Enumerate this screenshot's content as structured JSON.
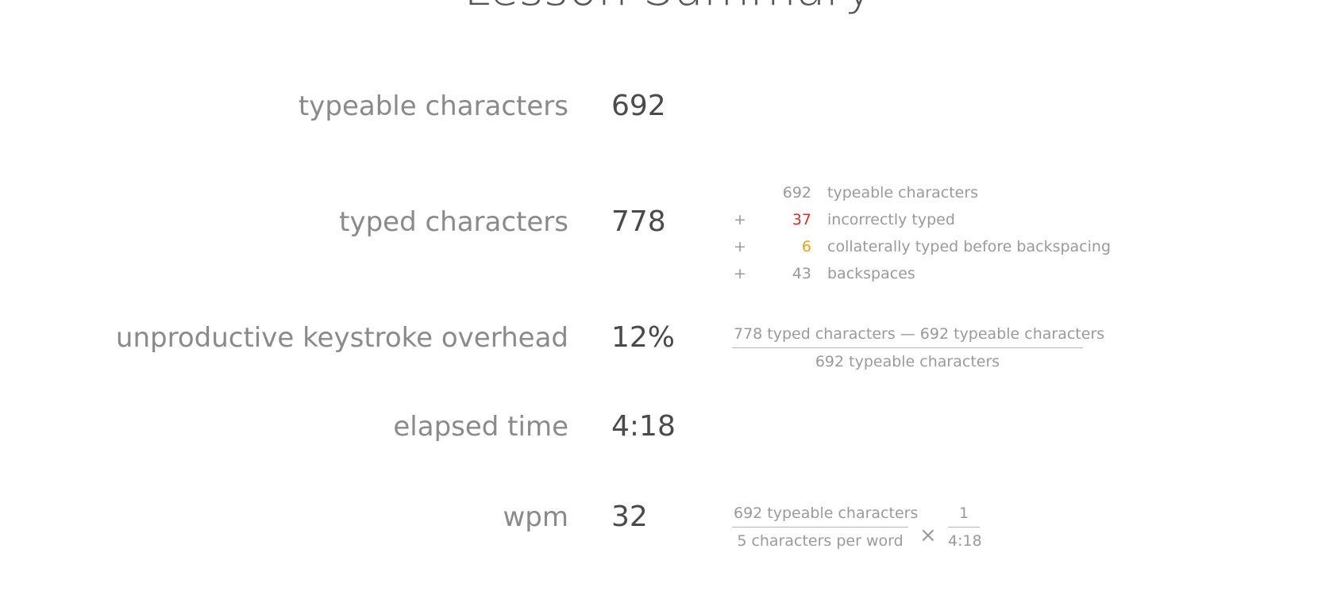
{
  "header": {
    "title": "Lesson Summary"
  },
  "stats": {
    "typeable": {
      "label": "typeable characters",
      "value": "692"
    },
    "typed": {
      "label": "typed characters",
      "value": "778"
    },
    "overhead": {
      "label": "unproductive keystroke overhead",
      "value": "12%"
    },
    "elapsed": {
      "label": "elapsed time",
      "value": "4:18"
    },
    "wpm": {
      "label": "wpm",
      "value": "32"
    }
  },
  "typed_breakdown": [
    {
      "sign": "",
      "number": "692",
      "description": "typeable characters"
    },
    {
      "sign": "+",
      "number": "37",
      "description": "incorrectly typed"
    },
    {
      "sign": "+",
      "number": "6",
      "description": "collaterally typed before backspacing"
    },
    {
      "sign": "+",
      "number": "43",
      "description": "backspaces"
    }
  ],
  "overhead_formula": {
    "numerator": "778 typed characters — 692 typeable characters",
    "denominator": "692 typeable characters"
  },
  "wpm_formula": {
    "fraction1_numerator": "692 typeable characters",
    "fraction1_denominator": "5 characters per word",
    "operator": "×",
    "fraction2_numerator": "1",
    "fraction2_denominator": "4:18"
  },
  "colors": {
    "incorrect": "#c0392b",
    "collateral": "#e6a020",
    "label": "#8a8a8a",
    "value": "#4a4a4a",
    "formula": "#9a9a9a"
  }
}
